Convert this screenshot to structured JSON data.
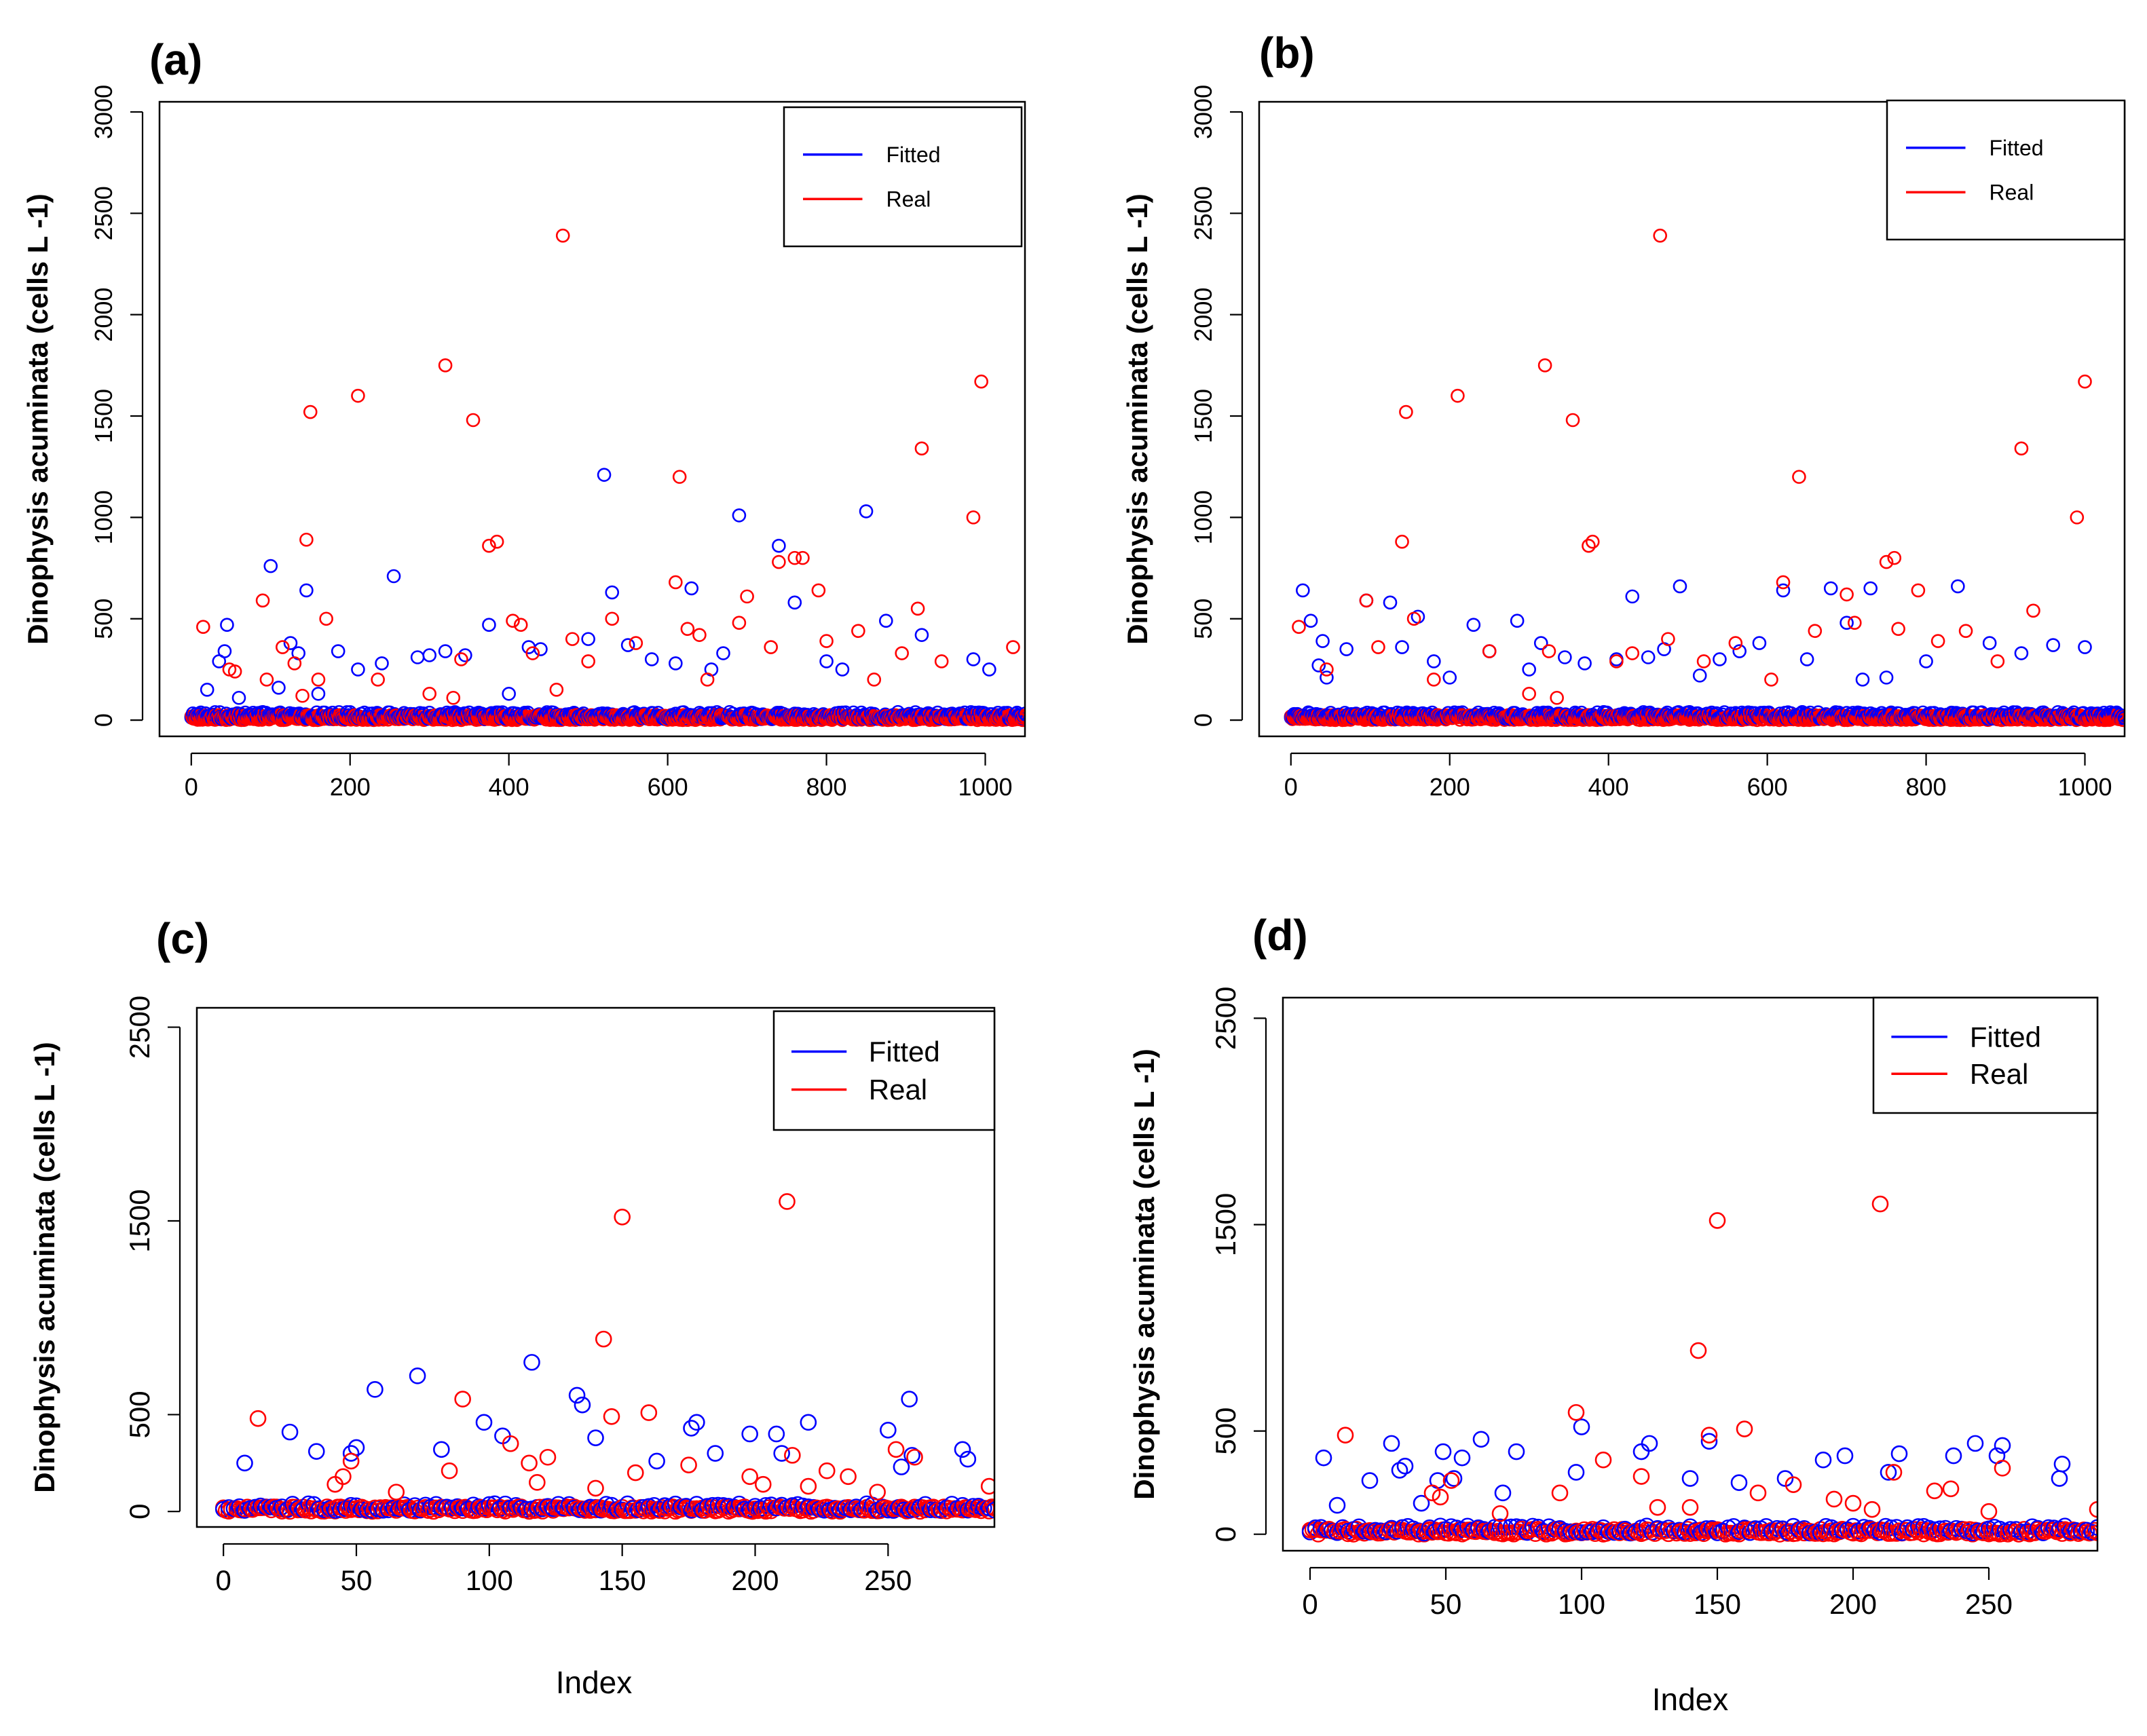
{
  "chart_data": [
    {
      "panel": "(a)",
      "type": "scatter",
      "ylabel": "Dinophysis acuminata (cells L -1)",
      "xlabel": "",
      "xlim": [
        -40,
        1050
      ],
      "ylim": [
        -80,
        3050
      ],
      "xticks": [
        0,
        200,
        400,
        600,
        800,
        1000
      ],
      "yticks": [
        0,
        500,
        1000,
        1500,
        2000,
        2500,
        3000
      ],
      "n": 1050,
      "legend_position": "top-right",
      "legend": [
        {
          "name": "Fitted",
          "color": "#0000ff"
        },
        {
          "name": "Real",
          "color": "#ff0000"
        }
      ],
      "series": [
        {
          "name": "Fitted",
          "color": "#0000ff",
          "x": [
            20,
            35,
            42,
            45,
            60,
            100,
            110,
            125,
            135,
            145,
            160,
            185,
            210,
            240,
            255,
            285,
            300,
            320,
            345,
            375,
            400,
            425,
            440,
            500,
            520,
            530,
            550,
            580,
            610,
            630,
            655,
            670,
            690,
            740,
            760,
            800,
            820,
            850,
            875,
            920,
            985,
            1005
          ],
          "y": [
            150,
            290,
            340,
            470,
            110,
            760,
            160,
            380,
            330,
            640,
            130,
            340,
            250,
            280,
            710,
            310,
            320,
            340,
            320,
            470,
            130,
            360,
            350,
            400,
            1210,
            630,
            370,
            300,
            280,
            650,
            250,
            330,
            1010,
            860,
            580,
            290,
            250,
            1030,
            490,
            420,
            300,
            250
          ]
        },
        {
          "name": "Real",
          "color": "#ff0000",
          "x": [
            15,
            48,
            55,
            90,
            95,
            115,
            130,
            140,
            145,
            150,
            160,
            170,
            210,
            235,
            300,
            320,
            330,
            340,
            355,
            375,
            385,
            405,
            415,
            430,
            460,
            468,
            480,
            500,
            530,
            560,
            610,
            615,
            625,
            640,
            650,
            690,
            700,
            730,
            740,
            760,
            770,
            790,
            800,
            840,
            860,
            895,
            915,
            920,
            945,
            985,
            995,
            1035
          ],
          "y": [
            460,
            250,
            240,
            590,
            200,
            360,
            280,
            120,
            890,
            1520,
            200,
            500,
            1600,
            200,
            130,
            1750,
            110,
            300,
            1480,
            860,
            880,
            490,
            470,
            330,
            150,
            2390,
            400,
            290,
            500,
            380,
            680,
            1200,
            450,
            420,
            200,
            480,
            610,
            360,
            780,
            800,
            800,
            640,
            390,
            440,
            200,
            330,
            550,
            1340,
            290,
            1000,
            1670,
            360
          ]
        }
      ]
    },
    {
      "panel": "(b)",
      "type": "scatter",
      "ylabel": "Dinophysis acuminata (cells L -1)",
      "xlabel": "",
      "xlim": [
        -40,
        1050
      ],
      "ylim": [
        -80,
        3050
      ],
      "xticks": [
        0,
        200,
        400,
        600,
        800,
        1000
      ],
      "yticks": [
        0,
        500,
        1000,
        1500,
        2000,
        2500,
        3000
      ],
      "n": 1050,
      "legend_position": "top-right",
      "legend": [
        {
          "name": "Fitted",
          "color": "#0000ff"
        },
        {
          "name": "Real",
          "color": "#ff0000"
        }
      ],
      "series": [
        {
          "name": "Fitted",
          "color": "#0000ff",
          "x": [
            15,
            25,
            35,
            40,
            45,
            70,
            95,
            125,
            140,
            160,
            180,
            200,
            230,
            250,
            285,
            300,
            315,
            345,
            370,
            410,
            430,
            450,
            470,
            490,
            515,
            540,
            565,
            590,
            620,
            650,
            680,
            700,
            720,
            730,
            750,
            800,
            840,
            880,
            920,
            960,
            1000
          ],
          "y": [
            640,
            490,
            270,
            390,
            210,
            350,
            590,
            580,
            360,
            510,
            290,
            210,
            470,
            340,
            490,
            250,
            380,
            310,
            280,
            300,
            610,
            310,
            350,
            660,
            220,
            300,
            340,
            380,
            640,
            300,
            650,
            480,
            200,
            650,
            210,
            290,
            660,
            380,
            330,
            370,
            360
          ]
        },
        {
          "name": "Real",
          "color": "#ff0000",
          "x": [
            10,
            45,
            95,
            110,
            140,
            145,
            155,
            180,
            210,
            250,
            300,
            320,
            325,
            335,
            355,
            375,
            380,
            410,
            430,
            465,
            475,
            520,
            560,
            605,
            620,
            640,
            660,
            700,
            710,
            750,
            760,
            765,
            790,
            815,
            850,
            890,
            920,
            935,
            990,
            1000
          ],
          "y": [
            460,
            250,
            590,
            360,
            880,
            1520,
            500,
            200,
            1600,
            340,
            130,
            1750,
            340,
            110,
            1480,
            860,
            880,
            290,
            330,
            2390,
            400,
            290,
            380,
            200,
            680,
            1200,
            440,
            620,
            480,
            780,
            800,
            450,
            640,
            390,
            440,
            290,
            1340,
            540,
            1000,
            1670
          ]
        }
      ]
    },
    {
      "panel": "(c)",
      "type": "scatter",
      "ylabel": "Dinophysis acuminata (cells L -1)",
      "xlabel": "Index",
      "xlim": [
        -10,
        290
      ],
      "ylim": [
        -80,
        2600
      ],
      "xticks": [
        0,
        50,
        100,
        150,
        200,
        250
      ],
      "yticks": [
        0,
        500,
        1500,
        2500
      ],
      "n": 290,
      "legend_position": "top-right",
      "legend": [
        {
          "name": "Fitted",
          "color": "#0000ff"
        },
        {
          "name": "Real",
          "color": "#ff0000"
        }
      ],
      "series": [
        {
          "name": "Fitted",
          "color": "#0000ff",
          "x": [
            8,
            25,
            35,
            48,
            50,
            57,
            73,
            82,
            98,
            105,
            116,
            133,
            135,
            140,
            163,
            176,
            178,
            185,
            198,
            208,
            210,
            220,
            250,
            255,
            258,
            259,
            278,
            280
          ],
          "y": [
            250,
            410,
            310,
            300,
            330,
            630,
            700,
            320,
            460,
            390,
            770,
            600,
            550,
            380,
            260,
            430,
            460,
            300,
            400,
            400,
            300,
            460,
            420,
            230,
            580,
            290,
            320,
            270
          ]
        },
        {
          "name": "Real",
          "color": "#ff0000",
          "x": [
            13,
            42,
            45,
            48,
            65,
            85,
            90,
            108,
            115,
            118,
            122,
            140,
            143,
            146,
            150,
            155,
            160,
            175,
            198,
            203,
            212,
            214,
            220,
            227,
            235,
            246,
            253,
            260,
            288
          ],
          "y": [
            480,
            140,
            180,
            260,
            100,
            210,
            580,
            350,
            250,
            150,
            280,
            120,
            890,
            490,
            1520,
            200,
            510,
            240,
            180,
            140,
            1600,
            290,
            130,
            210,
            180,
            100,
            320,
            280,
            130
          ]
        }
      ]
    },
    {
      "panel": "(d)",
      "type": "scatter",
      "ylabel": "Dinophysis acuminata (cells L -1)",
      "xlabel": "Index",
      "xlim": [
        -10,
        290
      ],
      "ylim": [
        -80,
        2600
      ],
      "xticks": [
        0,
        50,
        100,
        150,
        200,
        250
      ],
      "yticks": [
        0,
        500,
        1500,
        2500
      ],
      "n": 290,
      "legend_position": "top-right",
      "legend": [
        {
          "name": "Fitted",
          "color": "#0000ff"
        },
        {
          "name": "Real",
          "color": "#ff0000"
        }
      ],
      "series": [
        {
          "name": "Fitted",
          "color": "#0000ff",
          "x": [
            5,
            10,
            22,
            30,
            33,
            35,
            41,
            47,
            49,
            53,
            56,
            63,
            71,
            76,
            98,
            100,
            122,
            125,
            140,
            147,
            158,
            175,
            189,
            197,
            213,
            217,
            237,
            245,
            253,
            255,
            276,
            277
          ],
          "y": [
            370,
            140,
            260,
            440,
            310,
            330,
            150,
            260,
            400,
            270,
            370,
            460,
            200,
            400,
            300,
            520,
            400,
            440,
            270,
            450,
            250,
            270,
            360,
            380,
            300,
            390,
            380,
            440,
            380,
            430,
            270,
            340
          ]
        },
        {
          "name": "Real",
          "color": "#ff0000",
          "x": [
            13,
            45,
            48,
            52,
            70,
            92,
            98,
            108,
            122,
            128,
            140,
            143,
            147,
            150,
            160,
            165,
            178,
            193,
            200,
            207,
            210,
            215,
            230,
            236,
            250,
            255,
            290
          ],
          "y": [
            480,
            200,
            180,
            260,
            100,
            200,
            590,
            360,
            280,
            130,
            130,
            890,
            480,
            1520,
            510,
            200,
            240,
            170,
            150,
            120,
            1600,
            300,
            210,
            220,
            110,
            320,
            120
          ]
        }
      ]
    }
  ]
}
